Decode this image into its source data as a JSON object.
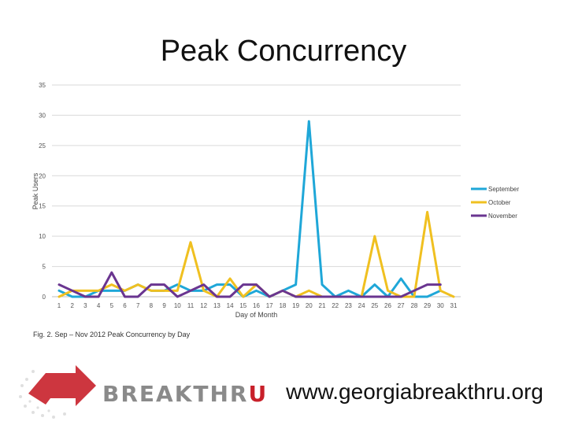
{
  "slide": {
    "title": "Peak Concurrency",
    "caption": "Fig. 2. Sep – Nov 2012 Peak Concurrency by Day",
    "brand_main": "BREAKTHR",
    "brand_accent": "U",
    "url": "www.georgiabreakthru.org"
  },
  "chart_data": {
    "type": "line",
    "title": "Peak Concurrency",
    "xlabel": "Day of Month",
    "ylabel": "Peak Users",
    "ylim": [
      0,
      35
    ],
    "yticks": [
      0,
      5,
      10,
      15,
      20,
      25,
      30,
      35
    ],
    "grid": true,
    "legend_position": "right",
    "x": [
      1,
      2,
      3,
      4,
      5,
      6,
      7,
      8,
      9,
      10,
      11,
      12,
      13,
      14,
      15,
      16,
      17,
      18,
      19,
      20,
      21,
      22,
      23,
      24,
      25,
      26,
      27,
      28,
      29,
      30,
      31
    ],
    "series": [
      {
        "name": "September",
        "color": "#1fa7d8",
        "values": [
          1,
          0,
          0,
          1,
          1,
          1,
          2,
          1,
          1,
          2,
          1,
          1,
          2,
          2,
          0,
          1,
          0,
          1,
          2,
          29,
          2,
          0,
          1,
          0,
          2,
          0,
          3,
          0,
          0,
          1,
          null
        ]
      },
      {
        "name": "October",
        "color": "#f0c020",
        "values": [
          0,
          1,
          1,
          1,
          2,
          1,
          2,
          1,
          1,
          1,
          9,
          1,
          0,
          3,
          0,
          2,
          0,
          1,
          0,
          1,
          0,
          0,
          0,
          0,
          10,
          1,
          0,
          0,
          14,
          1,
          0
        ]
      },
      {
        "name": "November",
        "color": "#6a3590",
        "values": [
          2,
          1,
          0,
          0,
          4,
          0,
          0,
          2,
          2,
          0,
          1,
          2,
          0,
          0,
          2,
          2,
          0,
          1,
          0,
          0,
          0,
          0,
          0,
          0,
          0,
          0,
          0,
          1,
          2,
          2,
          null
        ]
      }
    ]
  }
}
